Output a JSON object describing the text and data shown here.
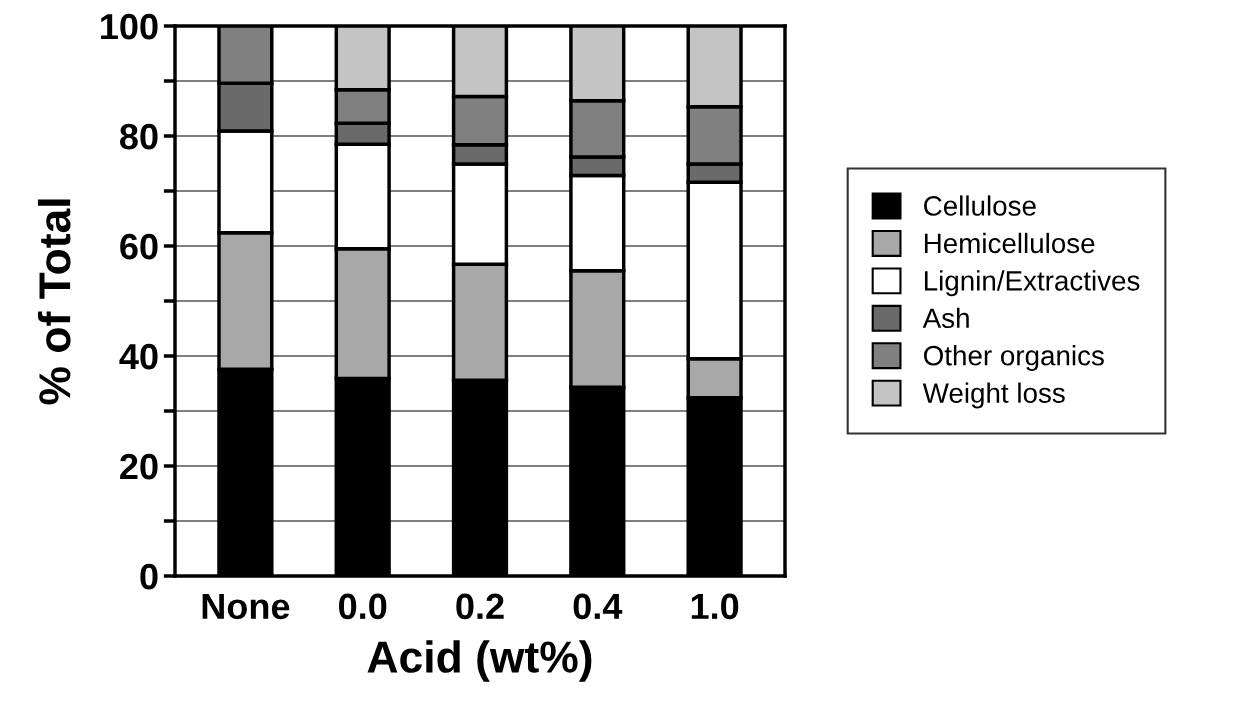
{
  "chart_data": {
    "type": "bar",
    "stacked": true,
    "xlabel": "Acid (wt%)",
    "ylabel": "% of Total",
    "categories": [
      "None",
      "0.0",
      "0.2",
      "0.4",
      "1.0"
    ],
    "series": [
      {
        "name": "Cellulose",
        "color": "#000000",
        "values": [
          37.6,
          35.9,
          35.6,
          34.3,
          32.4
        ]
      },
      {
        "name": "Hemicellulose",
        "color": "#a8a8a8",
        "values": [
          24.8,
          23.6,
          21.1,
          21.2,
          7.1
        ]
      },
      {
        "name": "Lignin/Extractives",
        "color": "#ffffff",
        "values": [
          18.5,
          19.0,
          18.2,
          17.3,
          32.1
        ]
      },
      {
        "name": "Ash",
        "color": "#6a6a6a",
        "values": [
          8.7,
          3.8,
          3.5,
          3.4,
          3.3
        ]
      },
      {
        "name": "Other organics",
        "color": "#808080",
        "values": [
          10.4,
          6.1,
          8.8,
          10.2,
          10.4
        ]
      },
      {
        "name": "Weight loss",
        "color": "#c4c4c4",
        "values": [
          null,
          11.6,
          12.8,
          13.6,
          14.7
        ]
      }
    ],
    "ylim": [
      0,
      100
    ],
    "yticks": [
      0,
      {
        "value": 10,
        "label": null
      },
      20,
      {
        "value": 30,
        "label": null
      },
      40,
      {
        "value": 50,
        "label": null
      },
      60,
      {
        "value": 70,
        "label": null
      },
      80,
      {
        "value": 90,
        "label": null
      },
      100
    ],
    "grid": "y",
    "legend": "right"
  }
}
